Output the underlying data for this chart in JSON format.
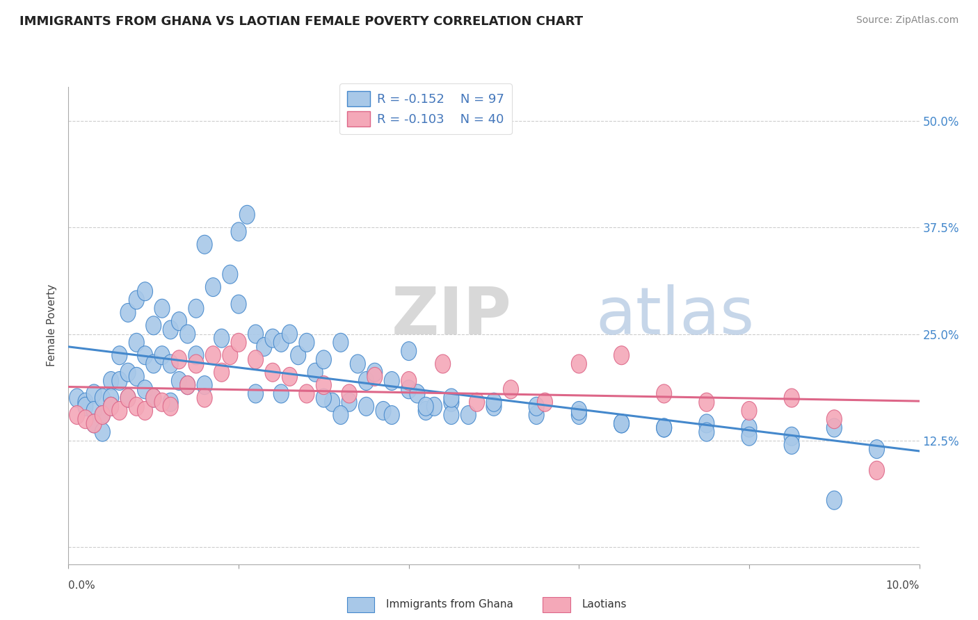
{
  "title": "IMMIGRANTS FROM GHANA VS LAOTIAN FEMALE POVERTY CORRELATION CHART",
  "source": "Source: ZipAtlas.com",
  "ylabel": "Female Poverty",
  "y_ticks": [
    0.0,
    0.125,
    0.25,
    0.375,
    0.5
  ],
  "y_tick_labels": [
    "",
    "12.5%",
    "25.0%",
    "37.5%",
    "50.0%"
  ],
  "x_range": [
    0.0,
    0.1
  ],
  "y_range": [
    -0.02,
    0.54
  ],
  "color_ghana": "#a8c8e8",
  "color_laotian": "#f4a8b8",
  "color_line_ghana": "#4488cc",
  "color_line_laotian": "#dd6688",
  "watermark_zip": "ZIP",
  "watermark_atlas": "atlas",
  "legend_label1": "Immigrants from Ghana",
  "legend_label2": "Laotians",
  "ghana_x": [
    0.001,
    0.002,
    0.002,
    0.003,
    0.003,
    0.003,
    0.004,
    0.004,
    0.004,
    0.005,
    0.005,
    0.005,
    0.006,
    0.006,
    0.007,
    0.007,
    0.007,
    0.008,
    0.008,
    0.008,
    0.009,
    0.009,
    0.009,
    0.01,
    0.01,
    0.01,
    0.011,
    0.011,
    0.012,
    0.012,
    0.012,
    0.013,
    0.013,
    0.014,
    0.014,
    0.015,
    0.015,
    0.016,
    0.016,
    0.017,
    0.018,
    0.019,
    0.02,
    0.02,
    0.021,
    0.022,
    0.022,
    0.023,
    0.024,
    0.025,
    0.025,
    0.026,
    0.027,
    0.028,
    0.029,
    0.03,
    0.031,
    0.032,
    0.033,
    0.034,
    0.035,
    0.036,
    0.037,
    0.038,
    0.04,
    0.041,
    0.042,
    0.043,
    0.045,
    0.047,
    0.03,
    0.032,
    0.035,
    0.038,
    0.042,
    0.045,
    0.05,
    0.055,
    0.06,
    0.065,
    0.07,
    0.075,
    0.08,
    0.085,
    0.09,
    0.095,
    0.04,
    0.045,
    0.05,
    0.055,
    0.06,
    0.065,
    0.07,
    0.075,
    0.08,
    0.085,
    0.09
  ],
  "ghana_y": [
    0.175,
    0.17,
    0.165,
    0.18,
    0.16,
    0.145,
    0.175,
    0.155,
    0.135,
    0.195,
    0.175,
    0.165,
    0.225,
    0.195,
    0.275,
    0.205,
    0.175,
    0.29,
    0.24,
    0.2,
    0.3,
    0.225,
    0.185,
    0.26,
    0.215,
    0.175,
    0.28,
    0.225,
    0.255,
    0.215,
    0.17,
    0.265,
    0.195,
    0.25,
    0.19,
    0.28,
    0.225,
    0.355,
    0.19,
    0.305,
    0.245,
    0.32,
    0.37,
    0.285,
    0.39,
    0.25,
    0.18,
    0.235,
    0.245,
    0.24,
    0.18,
    0.25,
    0.225,
    0.24,
    0.205,
    0.22,
    0.17,
    0.24,
    0.17,
    0.215,
    0.195,
    0.205,
    0.16,
    0.195,
    0.185,
    0.18,
    0.16,
    0.165,
    0.17,
    0.155,
    0.175,
    0.155,
    0.165,
    0.155,
    0.165,
    0.155,
    0.165,
    0.155,
    0.155,
    0.145,
    0.14,
    0.145,
    0.14,
    0.13,
    0.14,
    0.115,
    0.23,
    0.175,
    0.17,
    0.165,
    0.16,
    0.145,
    0.14,
    0.135,
    0.13,
    0.12,
    0.055
  ],
  "laotian_x": [
    0.001,
    0.002,
    0.003,
    0.004,
    0.005,
    0.006,
    0.007,
    0.008,
    0.009,
    0.01,
    0.011,
    0.012,
    0.013,
    0.014,
    0.015,
    0.016,
    0.017,
    0.018,
    0.019,
    0.02,
    0.022,
    0.024,
    0.026,
    0.028,
    0.03,
    0.033,
    0.036,
    0.04,
    0.044,
    0.048,
    0.052,
    0.056,
    0.06,
    0.065,
    0.07,
    0.075,
    0.08,
    0.085,
    0.09,
    0.095
  ],
  "laotian_y": [
    0.155,
    0.15,
    0.145,
    0.155,
    0.165,
    0.16,
    0.175,
    0.165,
    0.16,
    0.175,
    0.17,
    0.165,
    0.22,
    0.19,
    0.215,
    0.175,
    0.225,
    0.205,
    0.225,
    0.24,
    0.22,
    0.205,
    0.2,
    0.18,
    0.19,
    0.18,
    0.2,
    0.195,
    0.215,
    0.17,
    0.185,
    0.17,
    0.215,
    0.225,
    0.18,
    0.17,
    0.16,
    0.175,
    0.15,
    0.09
  ]
}
